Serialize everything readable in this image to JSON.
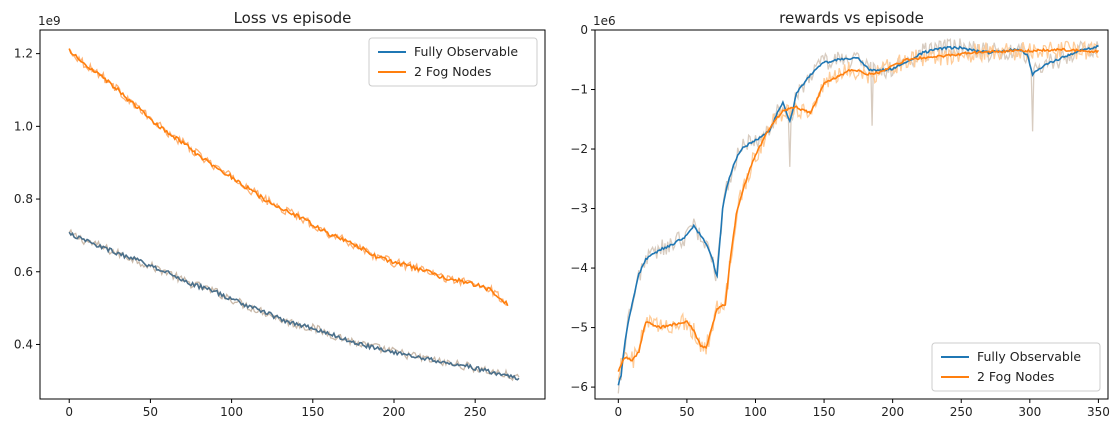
{
  "chart_data": [
    {
      "type": "line",
      "title": "Loss vs episode",
      "xlabel": "",
      "ylabel": "",
      "offset_text": "1e9",
      "xlim": [
        -18,
        293
      ],
      "ylim": [
        0.25,
        1.265
      ],
      "xticks": [
        0,
        50,
        100,
        150,
        200,
        250
      ],
      "yticks": [
        0.4,
        0.6,
        0.8,
        1.0,
        1.2
      ],
      "ytick_labels": [
        "0.4",
        "0.6",
        "0.8",
        "1.0",
        "1.2"
      ],
      "grid": false,
      "legend_position": "top-right",
      "series": [
        {
          "name": "Fully Observable",
          "color": "#1f77b4",
          "raw_color": "#c9b9a9",
          "x": [
            0,
            10,
            20,
            30,
            40,
            50,
            60,
            70,
            80,
            90,
            100,
            110,
            120,
            130,
            140,
            150,
            160,
            170,
            180,
            190,
            200,
            210,
            220,
            230,
            240,
            250,
            260,
            270,
            277
          ],
          "y": [
            0.705,
            0.685,
            0.668,
            0.65,
            0.635,
            0.615,
            0.6,
            0.575,
            0.56,
            0.545,
            0.525,
            0.505,
            0.49,
            0.47,
            0.455,
            0.445,
            0.43,
            0.415,
            0.4,
            0.39,
            0.38,
            0.37,
            0.36,
            0.35,
            0.345,
            0.335,
            0.325,
            0.315,
            0.305
          ]
        },
        {
          "name": "2 Fog Nodes",
          "color": "#ff7f0e",
          "raw_color": "#ffb070",
          "x": [
            0,
            10,
            20,
            30,
            40,
            50,
            60,
            70,
            80,
            90,
            100,
            110,
            120,
            130,
            140,
            150,
            160,
            170,
            180,
            190,
            200,
            210,
            220,
            230,
            240,
            250,
            260,
            270
          ],
          "y": [
            1.21,
            1.17,
            1.14,
            1.1,
            1.06,
            1.02,
            0.985,
            0.955,
            0.92,
            0.89,
            0.86,
            0.83,
            0.8,
            0.775,
            0.755,
            0.73,
            0.705,
            0.685,
            0.665,
            0.64,
            0.625,
            0.615,
            0.6,
            0.585,
            0.575,
            0.565,
            0.55,
            0.51
          ]
        }
      ]
    },
    {
      "type": "line",
      "title": "rewards vs episode",
      "xlabel": "",
      "ylabel": "",
      "offset_text": "1e6",
      "xlim": [
        -17,
        357
      ],
      "ylim": [
        -6.2,
        0.0
      ],
      "xticks": [
        0,
        50,
        100,
        150,
        200,
        250,
        300,
        350
      ],
      "yticks": [
        -6,
        -5,
        -4,
        -3,
        -2,
        -1,
        0
      ],
      "ytick_labels": [
        "−6",
        "−5",
        "−4",
        "−3",
        "−2",
        "−1",
        "0"
      ],
      "grid": false,
      "legend_position": "bottom-right",
      "series": [
        {
          "name": "Fully Observable",
          "color": "#1f77b4",
          "raw_color": "#d8ccc0",
          "x": [
            0,
            2,
            5,
            10,
            15,
            20,
            30,
            40,
            50,
            55,
            62,
            68,
            72,
            76,
            80,
            85,
            90,
            100,
            110,
            115,
            120,
            125,
            130,
            140,
            150,
            160,
            170,
            175,
            180,
            183,
            190,
            200,
            210,
            220,
            230,
            240,
            250,
            260,
            270,
            280,
            290,
            298,
            302,
            310,
            320,
            330,
            340,
            350
          ],
          "y": [
            -5.95,
            -5.8,
            -5.2,
            -4.6,
            -4.1,
            -3.85,
            -3.7,
            -3.6,
            -3.45,
            -3.3,
            -3.5,
            -3.8,
            -4.15,
            -3.0,
            -2.55,
            -2.2,
            -2.0,
            -1.85,
            -1.7,
            -1.45,
            -1.2,
            -1.55,
            -1.05,
            -0.75,
            -0.55,
            -0.5,
            -0.47,
            -0.48,
            -0.6,
            -0.68,
            -0.68,
            -0.65,
            -0.55,
            -0.4,
            -0.33,
            -0.3,
            -0.3,
            -0.35,
            -0.38,
            -0.35,
            -0.32,
            -0.4,
            -0.75,
            -0.6,
            -0.5,
            -0.4,
            -0.33,
            -0.27
          ]
        },
        {
          "name": "2 Fog Nodes",
          "color": "#ff7f0e",
          "raw_color": "#ffcc99",
          "x": [
            0,
            5,
            10,
            15,
            20,
            30,
            40,
            50,
            55,
            60,
            64,
            68,
            72,
            78,
            82,
            86,
            90,
            95,
            100,
            110,
            120,
            130,
            140,
            150,
            160,
            170,
            175,
            180,
            190,
            200,
            210,
            220,
            230,
            240,
            250,
            260,
            270,
            280,
            290,
            300,
            310,
            320,
            330,
            340,
            350
          ],
          "y": [
            -5.72,
            -5.5,
            -5.55,
            -5.4,
            -4.9,
            -5.0,
            -4.95,
            -4.9,
            -5.05,
            -5.3,
            -5.35,
            -5.0,
            -4.7,
            -4.6,
            -3.8,
            -3.1,
            -2.75,
            -2.4,
            -2.1,
            -1.65,
            -1.35,
            -1.3,
            -1.4,
            -0.9,
            -0.78,
            -0.66,
            -0.68,
            -0.75,
            -0.72,
            -0.6,
            -0.5,
            -0.47,
            -0.45,
            -0.43,
            -0.4,
            -0.38,
            -0.36,
            -0.36,
            -0.35,
            -0.35,
            -0.34,
            -0.33,
            -0.34,
            -0.35,
            -0.36
          ]
        }
      ]
    }
  ]
}
